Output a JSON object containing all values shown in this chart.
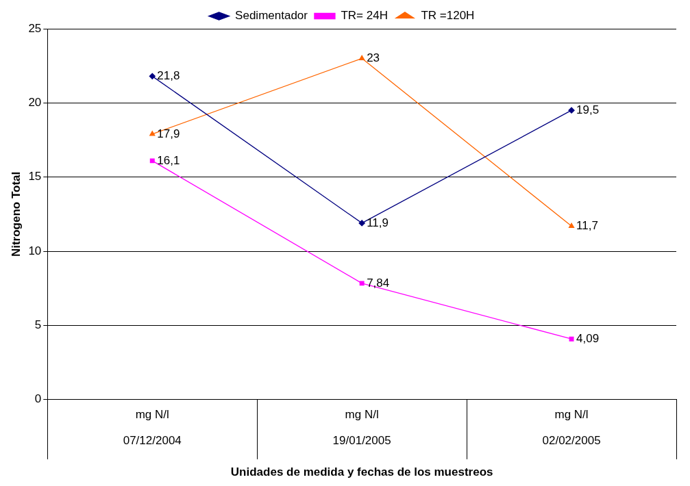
{
  "chart_data": {
    "type": "line",
    "xlabel": "Unidades de medida y fechas de los muestreos",
    "ylabel": "Nitrogeno Total",
    "categories": [
      "mg N/l\n07/12/2004",
      "mg N/l\n19/01/2005",
      "mg N/l\n02/02/2005"
    ],
    "ylim": [
      0,
      25
    ],
    "yticks": [
      0,
      5,
      10,
      15,
      20,
      25
    ],
    "grid": "y",
    "legend": "top",
    "line_style": "solid",
    "series": [
      {
        "name": "Sedimentador",
        "color": "#000080",
        "marker": "diamond",
        "values": [
          21.8,
          11.9,
          19.5
        ],
        "value_labels": [
          "21,8",
          "11,9",
          "19,5"
        ]
      },
      {
        "name": "TR= 24H",
        "color": "#ff00ff",
        "marker": "square",
        "values": [
          16.1,
          7.84,
          4.09
        ],
        "value_labels": [
          "16,1",
          "7,84",
          "4,09"
        ]
      },
      {
        "name": "TR =120H",
        "color": "#ff6600",
        "marker": "triangle",
        "values": [
          17.9,
          23,
          11.7
        ],
        "value_labels": [
          "17,9",
          "23",
          "11,7"
        ]
      }
    ]
  }
}
